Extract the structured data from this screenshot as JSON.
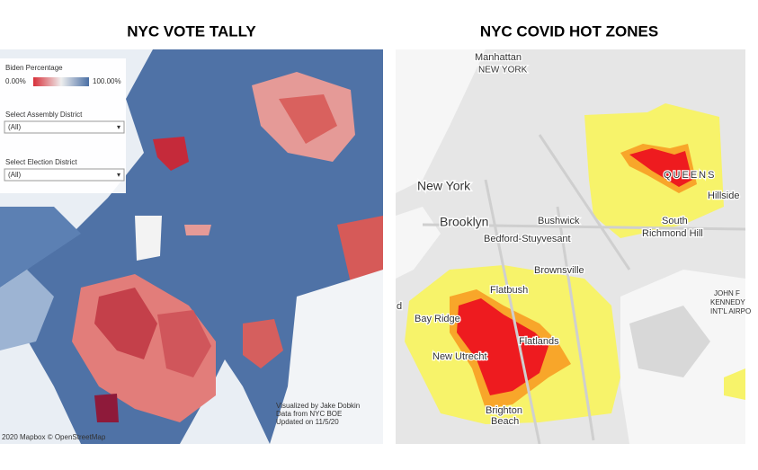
{
  "panels": [
    {
      "title": "NYC VOTE TALLY",
      "legend": {
        "title": "Biden Percentage",
        "min_label": "0.00%",
        "max_label": "100.00%"
      },
      "filters": [
        {
          "label": "Select Assembly District",
          "value": "(All)"
        },
        {
          "label": "Select Election District",
          "value": "(All)"
        }
      ],
      "credits": [
        "Visualized by Jake Dobkin",
        "Data from NYC BOE",
        "Updated on 11/5/20"
      ],
      "attribution": "2020 Mapbox © OpenStreetMap"
    },
    {
      "title": "NYC COVID HOT ZONES",
      "labels": [
        "Manhattan",
        "NEW YORK",
        "New York",
        "Brooklyn",
        "Bushwick",
        "Bedford-Stuyvesant",
        "QUEENS",
        "Hillside",
        "South",
        "Richmond Hill",
        "Brownsville",
        "Flatbush",
        "Bay Ridge",
        "Flatlands",
        "New Utrecht",
        "Brighton",
        "Beach",
        "JOHN F",
        "KENNEDY",
        "INT'L AIRPO",
        "d"
      ]
    }
  ]
}
